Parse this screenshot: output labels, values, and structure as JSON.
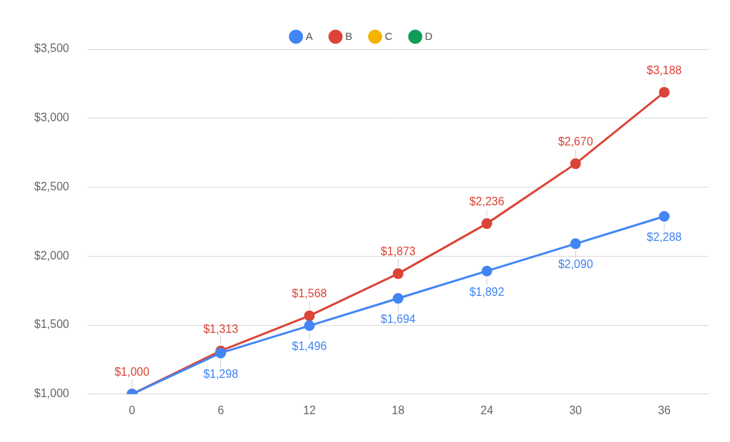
{
  "chart_data": {
    "type": "line",
    "categories": [
      "0",
      "6",
      "12",
      "18",
      "24",
      "30",
      "36"
    ],
    "series": [
      {
        "name": "A",
        "color": "#4285f4",
        "values": [
          1000,
          1298,
          1496,
          1694,
          1892,
          2090,
          2288
        ],
        "value_labels": [
          null,
          "$1,298",
          "$1,496",
          "$1,694",
          "$1,892",
          "$2,090",
          "$2,288"
        ]
      },
      {
        "name": "B",
        "color": "#db4437",
        "values": [
          1000,
          1313,
          1568,
          1873,
          2236,
          2670,
          3188
        ],
        "value_labels": [
          "$1,000",
          "$1,313",
          "$1,568",
          "$1,873",
          "$2,236",
          "$2,670",
          "$3,188"
        ]
      },
      {
        "name": "C",
        "color": "#f4b400",
        "values": [
          null,
          null,
          null,
          null,
          null,
          null,
          null
        ]
      },
      {
        "name": "D",
        "color": "#0f9d58",
        "values": [
          null,
          null,
          null,
          null,
          null,
          null,
          null
        ]
      }
    ],
    "ylim": [
      1000,
      3500
    ],
    "yticks": [
      {
        "value": 1000,
        "label": "$1,000"
      },
      {
        "value": 1500,
        "label": "$1,500"
      },
      {
        "value": 2000,
        "label": "$2,000"
      },
      {
        "value": 2500,
        "label": "$2,500"
      },
      {
        "value": 3000,
        "label": "$3,000"
      },
      {
        "value": 3500,
        "label": "$3,500"
      }
    ],
    "grid": true,
    "legend": "top",
    "marker": "circle",
    "data_labels": true
  }
}
